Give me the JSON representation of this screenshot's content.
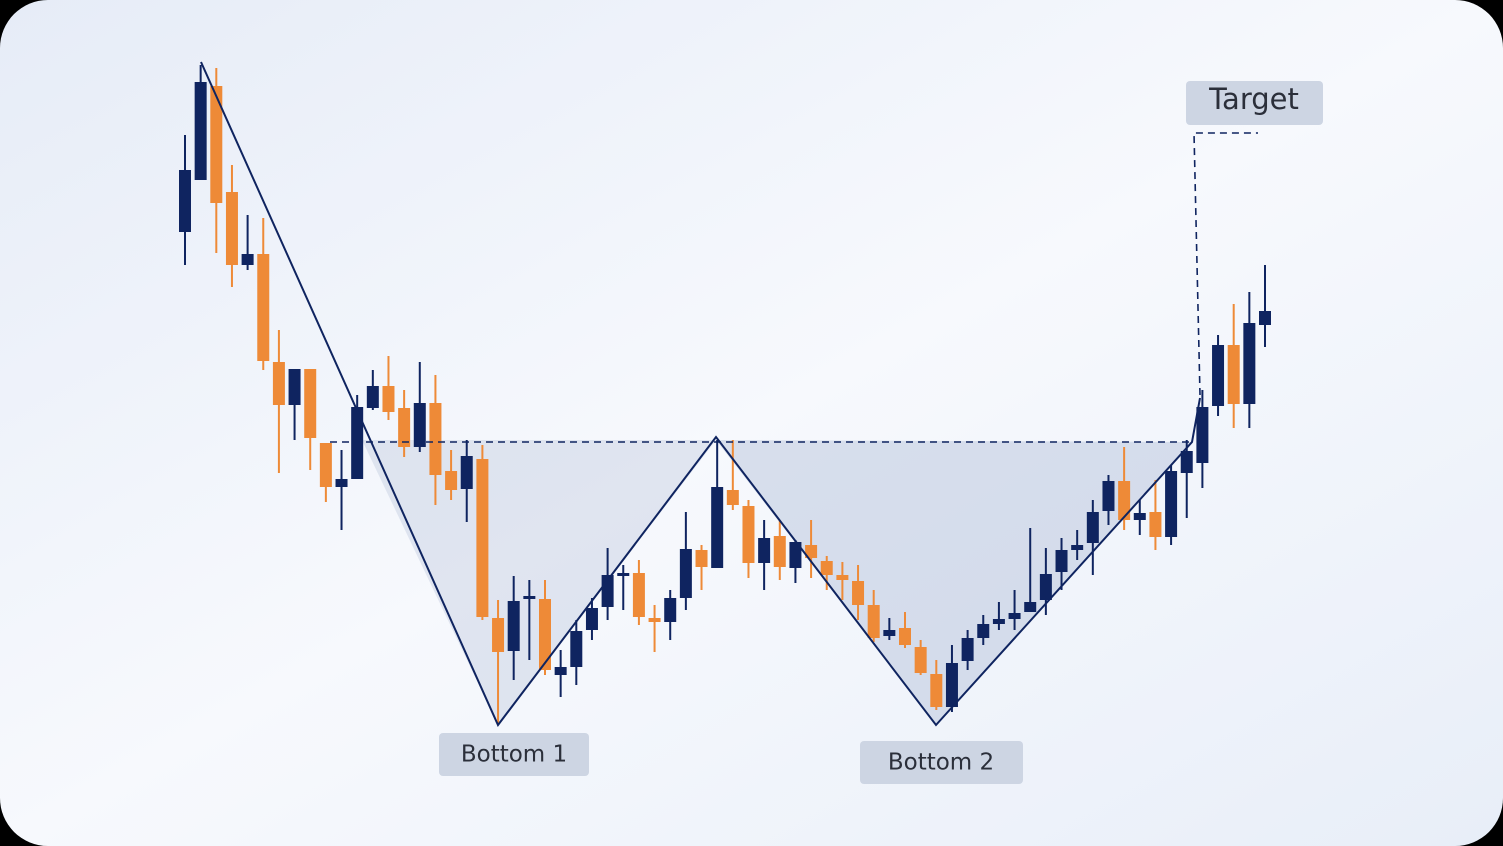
{
  "chart_data": {
    "type": "candlestick",
    "up_color": "#0f2460",
    "down_color": "#ee8a37",
    "ylim": [
      0,
      846
    ],
    "open": [
      614,
      666,
      760,
      654,
      581,
      592,
      484,
      441,
      477,
      403,
      359,
      367,
      438,
      460,
      438,
      399,
      443,
      375,
      357,
      387,
      228,
      195,
      247,
      247,
      171,
      179,
      216,
      239,
      270,
      273,
      228,
      224,
      248,
      296,
      278,
      356,
      340,
      283,
      310,
      278,
      301,
      285,
      271,
      265,
      241,
      210,
      218,
      199,
      172,
      139,
      185,
      208,
      222,
      227,
      234,
      246,
      274,
      296,
      303,
      335,
      365,
      326,
      334,
      309,
      373,
      383,
      440,
      501,
      442,
      521
    ],
    "high": [
      711,
      781,
      778,
      681,
      631,
      628,
      516,
      477,
      477,
      403,
      396,
      451,
      476,
      490,
      456,
      484,
      471,
      396,
      406,
      401,
      246,
      270,
      266,
      266,
      196,
      226,
      248,
      298,
      281,
      286,
      241,
      256,
      334,
      301,
      406,
      406,
      346,
      326,
      326,
      306,
      326,
      290,
      284,
      281,
      256,
      228,
      234,
      206,
      186,
      201,
      216,
      231,
      244,
      256,
      318,
      298,
      308,
      316,
      346,
      371,
      399,
      346,
      366,
      381,
      406,
      456,
      511,
      542,
      554,
      581
    ],
    "low": [
      581,
      666,
      593,
      559,
      576,
      476,
      373,
      406,
      376,
      344,
      316,
      367,
      436,
      426,
      389,
      394,
      341,
      346,
      324,
      226,
      121,
      166,
      186,
      171,
      149,
      161,
      206,
      226,
      236,
      221,
      194,
      206,
      236,
      256,
      278,
      336,
      268,
      256,
      266,
      263,
      268,
      256,
      246,
      226,
      204,
      206,
      198,
      171,
      136,
      134,
      176,
      201,
      216,
      216,
      234,
      231,
      256,
      286,
      271,
      321,
      316,
      311,
      296,
      301,
      328,
      358,
      430,
      418,
      418,
      499
    ],
    "close": [
      676,
      764,
      643,
      581,
      592,
      485,
      441,
      477,
      408,
      359,
      367,
      439,
      460,
      434,
      399,
      443,
      371,
      356,
      390,
      229,
      194,
      245,
      250,
      176,
      179,
      215,
      238,
      271,
      273,
      229,
      224,
      248,
      297,
      279,
      359,
      341,
      283,
      308,
      279,
      304,
      288,
      271,
      266,
      241,
      208,
      216,
      201,
      173,
      139,
      183,
      208,
      222,
      227,
      233,
      244,
      272,
      296,
      301,
      334,
      365,
      326,
      333,
      309,
      375,
      395,
      439,
      501,
      442,
      523,
      535
    ],
    "annotations": [
      "Bottom 1",
      "Bottom 2",
      "Target"
    ]
  }
}
